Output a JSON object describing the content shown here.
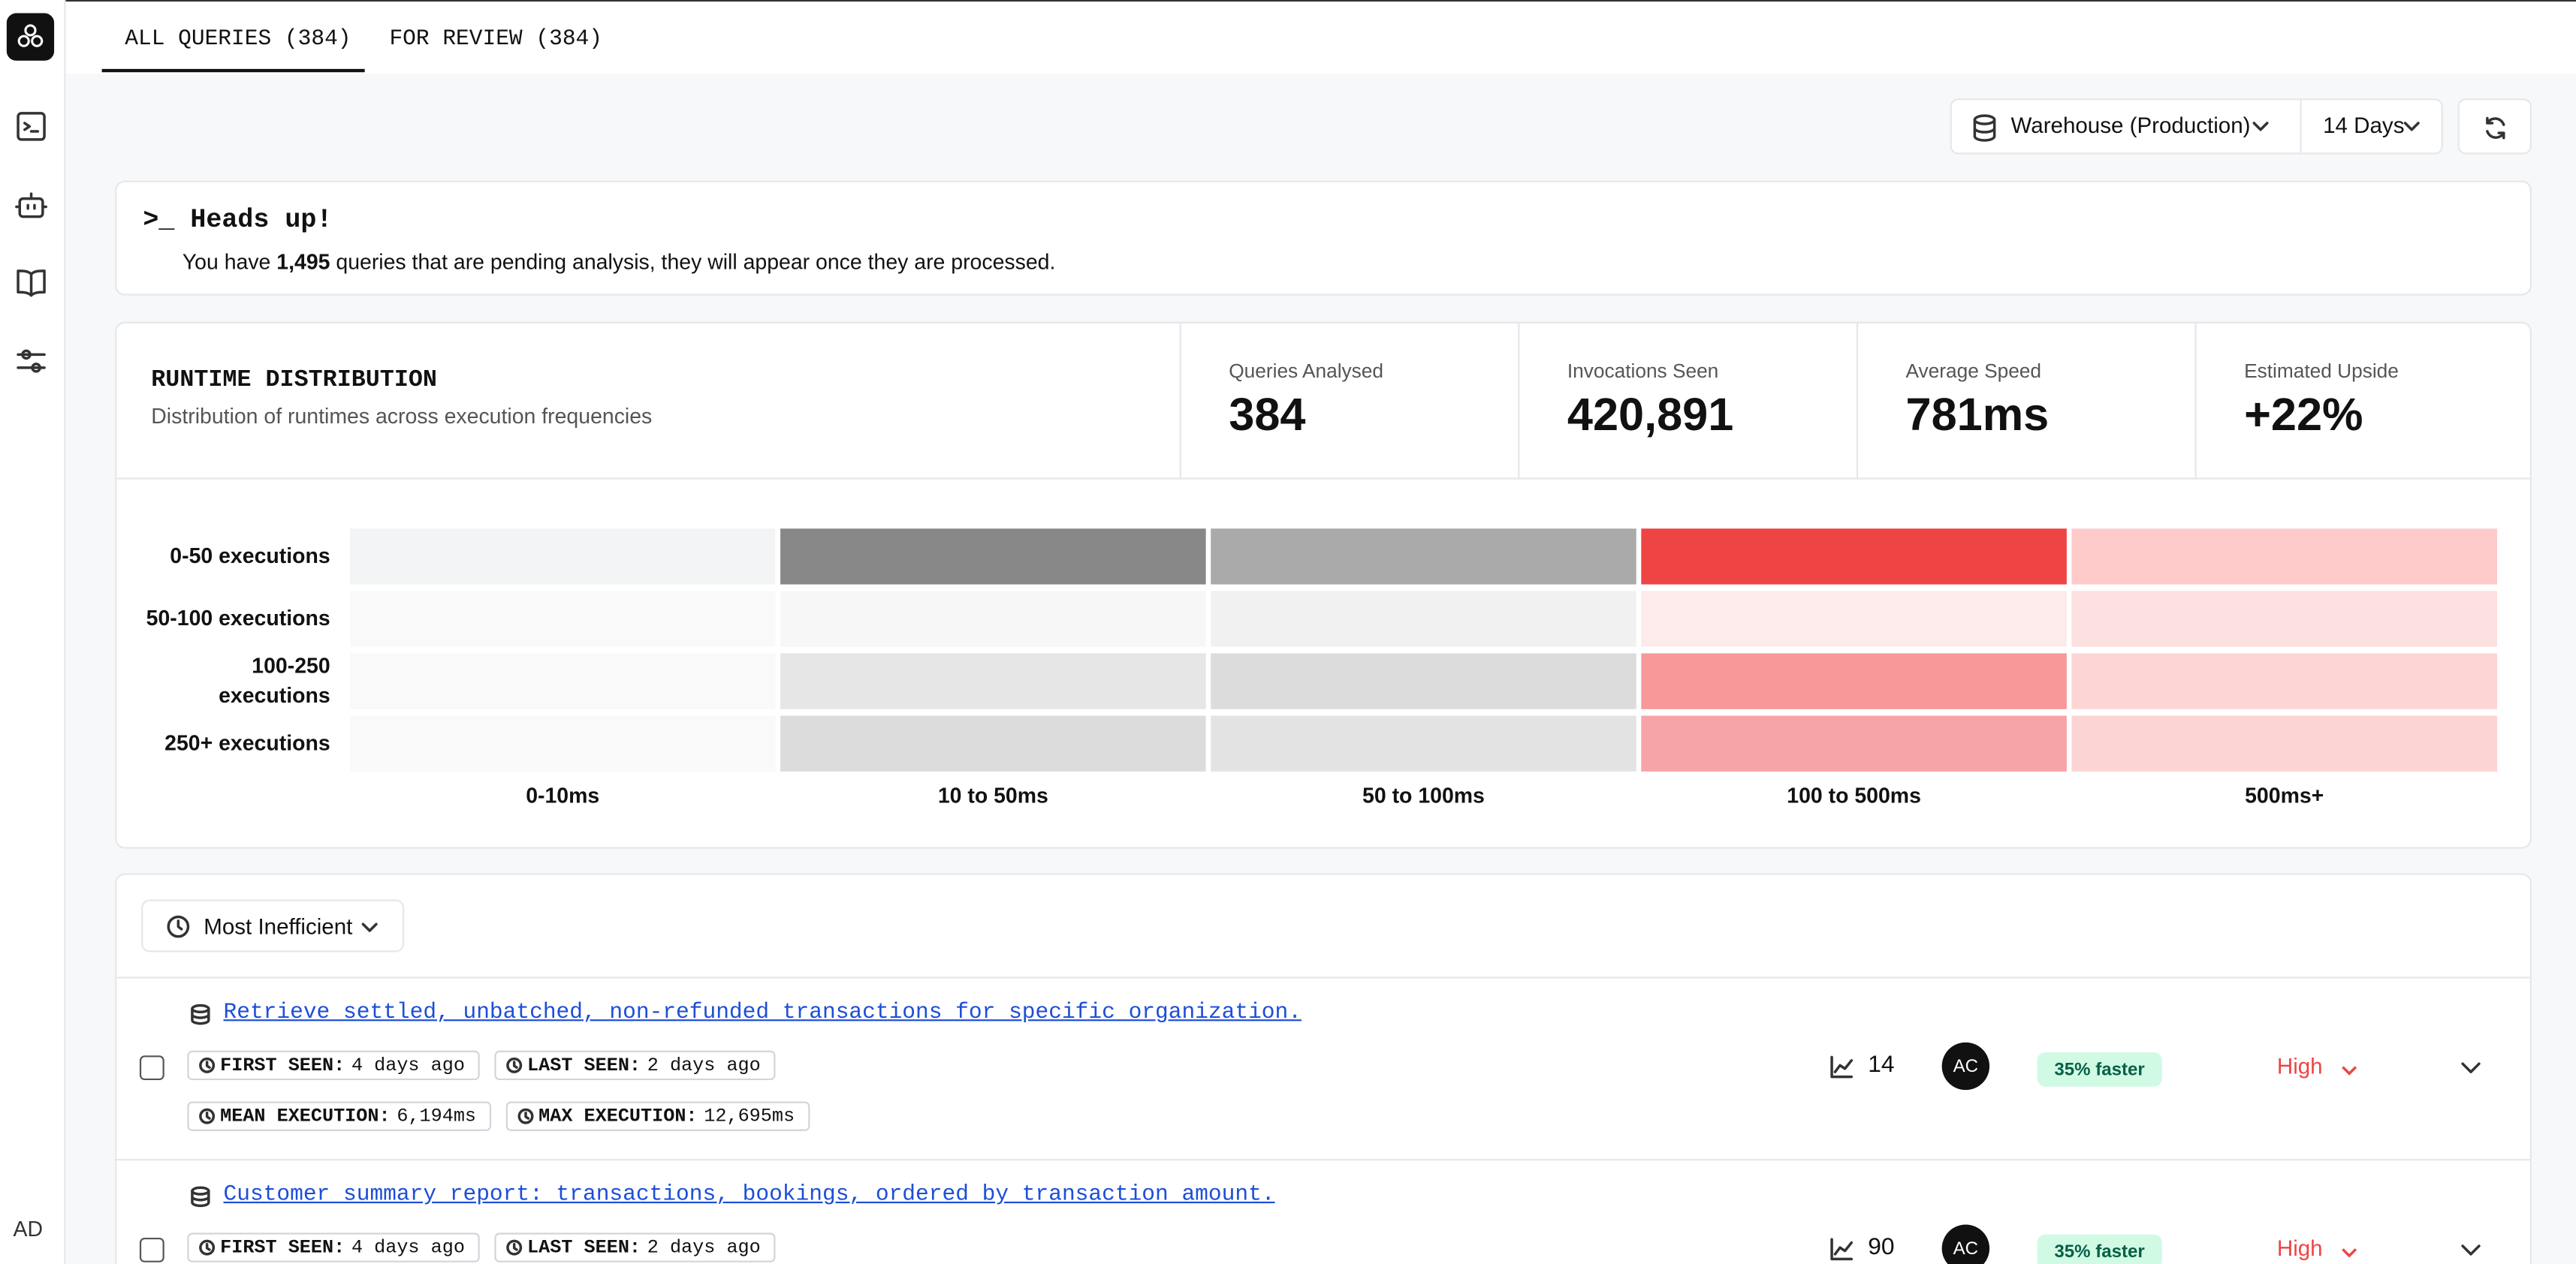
{
  "nav": {
    "user_initials": "AD"
  },
  "tabs": [
    "ALL QUERIES (384)",
    "FOR REVIEW (384)"
  ],
  "filters": {
    "warehouse": "Warehouse (Production)",
    "period": "14 Days"
  },
  "notice": {
    "title": "Heads up!",
    "text_before": "You have ",
    "count": "1,495",
    "text_after": " queries that are pending analysis, they will appear once they are processed."
  },
  "runtime": {
    "title": "RUNTIME DISTRIBUTION",
    "subtitle": "Distribution of runtimes across execution frequencies",
    "stats": [
      {
        "label": "Queries Analysed",
        "value": "384"
      },
      {
        "label": "Invocations Seen",
        "value": "420,891"
      },
      {
        "label": "Average Speed",
        "value": "781ms"
      },
      {
        "label": "Estimated Upside",
        "value": "+22%"
      }
    ],
    "heatmap": {
      "rows": [
        "0-50 executions",
        "50-100 executions",
        "100-250 executions",
        "250+ executions"
      ],
      "columns": [
        "0-10ms",
        "10 to 50ms",
        "50 to 100ms",
        "100 to 500ms",
        "500ms+"
      ],
      "colors": [
        [
          "#f3f4f5",
          "#888888",
          "#aaaaaa",
          "#ef4444",
          "#fecaca"
        ],
        [
          "#f9f9f9",
          "#f7f7f7",
          "#f1f1f2",
          "#fdeaea",
          "#fde0e0"
        ],
        [
          "#f9f9f9",
          "#e6e6e6",
          "#dcdcdc",
          "#f89898",
          "#fdd5d5"
        ],
        [
          "#f9f9f9",
          "#dcdcdc",
          "#e3e3e3",
          "#f7a4a8",
          "#fdd4d4"
        ]
      ]
    }
  },
  "queries": {
    "sort": "Most Inefficient",
    "items": [
      {
        "title": "Retrieve settled, unbatched, non-refunded transactions for specific organization.",
        "tags": [
          {
            "label": "FIRST SEEN:",
            "value": "4 days ago"
          },
          {
            "label": "LAST SEEN:",
            "value": "2 days ago"
          },
          {
            "label": "MEAN EXECUTION:",
            "value": "6,194ms"
          },
          {
            "label": "MAX EXECUTION:",
            "value": "12,695ms"
          }
        ],
        "count": 14,
        "owner": "AC",
        "speedup": "35% faster",
        "priority": "High"
      },
      {
        "title": "Customer summary report: transactions, bookings, ordered by transaction amount.",
        "tags": [
          {
            "label": "FIRST SEEN:",
            "value": "4 days ago"
          },
          {
            "label": "LAST SEEN:",
            "value": "2 days ago"
          }
        ],
        "count": 90,
        "owner": "AC",
        "speedup": "35% faster",
        "priority": "High"
      }
    ]
  }
}
